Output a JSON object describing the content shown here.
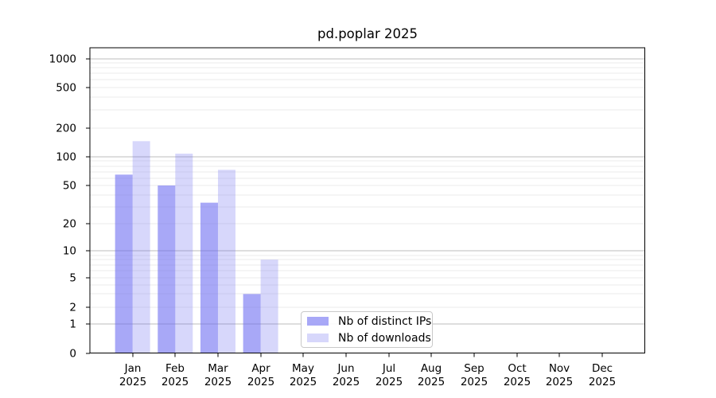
{
  "figure": {
    "title": "pd.poplar 2025"
  },
  "chart_data": {
    "type": "bar",
    "title": "pd.poplar 2025",
    "yscale": "symlog",
    "grid": true,
    "legend_position": "lower center",
    "ylim": [
      0,
      1300
    ],
    "yticks": [
      1000,
      500,
      200,
      100,
      50,
      20,
      10,
      5,
      2,
      1,
      0
    ],
    "x_tick_labels": [
      {
        "month": "Jan",
        "year": "2025"
      },
      {
        "month": "Feb",
        "year": "2025"
      },
      {
        "month": "Mar",
        "year": "2025"
      },
      {
        "month": "Apr",
        "year": "2025"
      },
      {
        "month": "May",
        "year": "2025"
      },
      {
        "month": "Jun",
        "year": "2025"
      },
      {
        "month": "Jul",
        "year": "2025"
      },
      {
        "month": "Aug",
        "year": "2025"
      },
      {
        "month": "Sep",
        "year": "2025"
      },
      {
        "month": "Oct",
        "year": "2025"
      },
      {
        "month": "Nov",
        "year": "2025"
      },
      {
        "month": "Dec",
        "year": "2025"
      }
    ],
    "series": [
      {
        "key": "distinct-ips",
        "name": "Nb of distinct IPs",
        "fill": "rgba(102,102,241,0.57)",
        "display_hex": "#a8a8f7",
        "values": [
          65,
          50,
          33,
          3,
          0,
          0,
          0,
          0,
          0,
          0,
          0,
          0
        ]
      },
      {
        "key": "downloads",
        "name": "Nb of downloads",
        "fill": "rgba(102,102,241,0.26)",
        "display_hex": "#d8d8fa",
        "values": [
          146,
          108,
          73,
          8,
          0,
          0,
          0,
          0,
          0,
          0,
          0,
          0
        ]
      }
    ],
    "legend_entries": [
      "Nb of distinct IPs",
      "Nb of downloads"
    ]
  },
  "colors": {
    "background": "#ffffff",
    "major_grid": "#bcbcbc",
    "minor_grid": "#ebebeb",
    "axis": "#000000",
    "text": "#000000",
    "legend_border": "#c9c9c9"
  }
}
